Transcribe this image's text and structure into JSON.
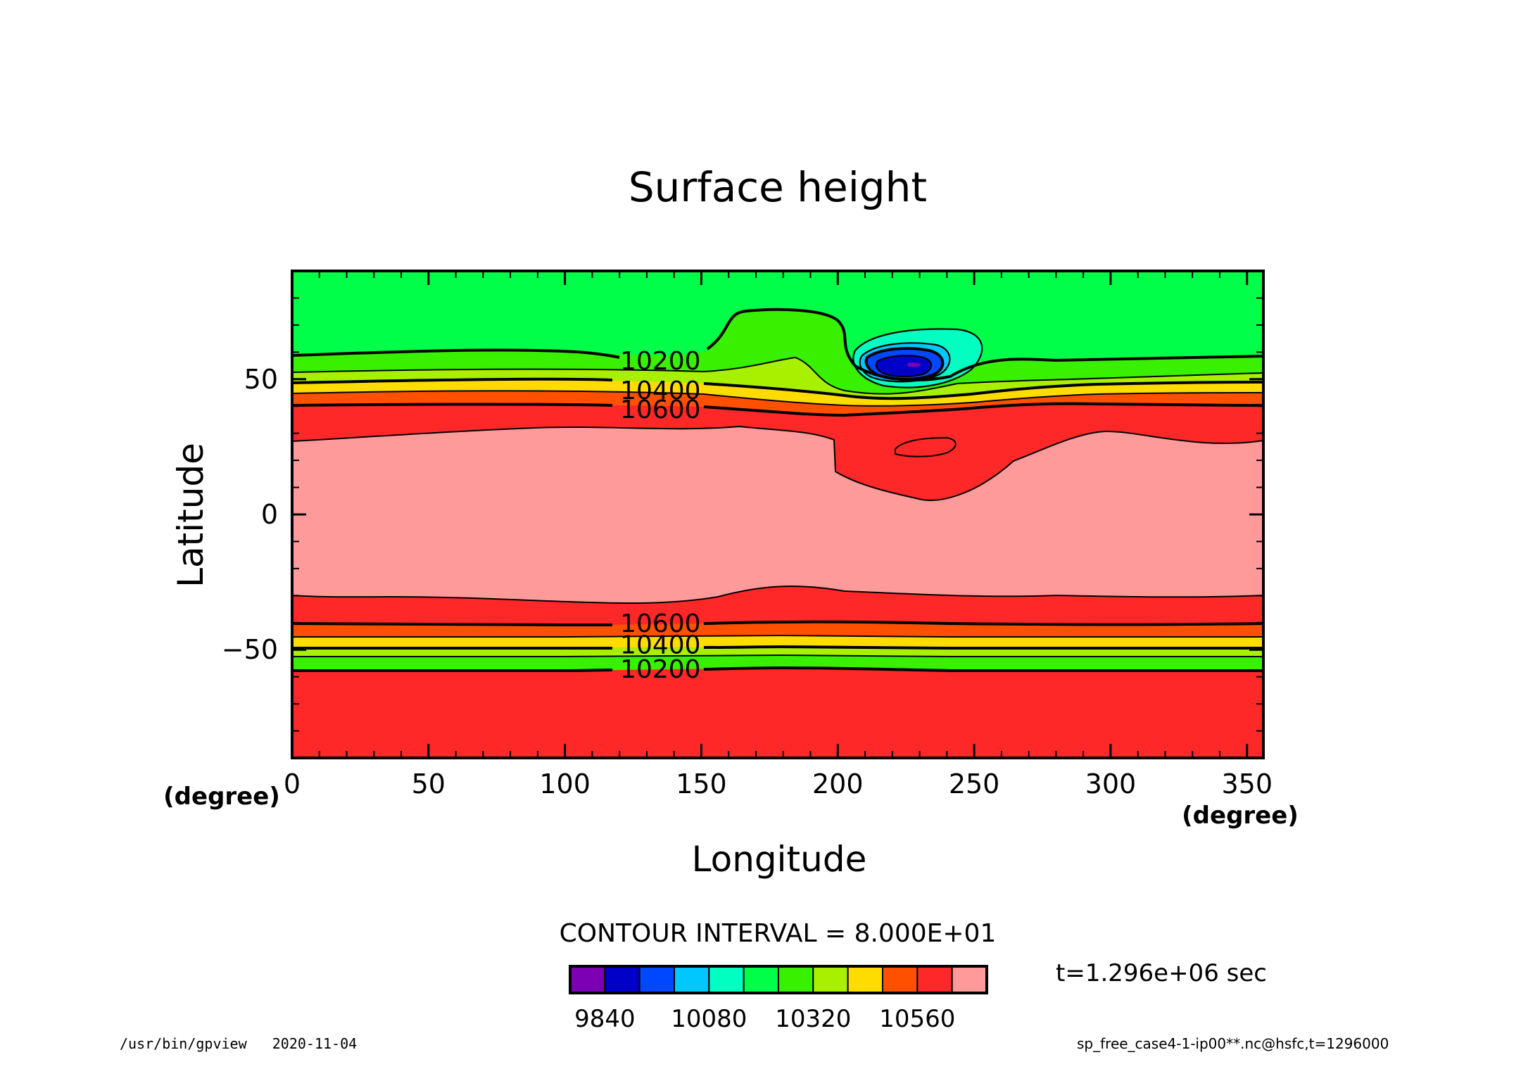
{
  "chart_data": {
    "type": "heatmap",
    "subtype": "filled-contour",
    "title": "Surface height",
    "xlabel": "Longitude",
    "ylabel": "Latitude",
    "x_unit": "(degree)",
    "y_unit": "(degree)",
    "xlim": [
      0,
      356
    ],
    "ylim": [
      -90,
      90
    ],
    "x_ticks": [
      "0",
      "50",
      "100",
      "150",
      "200",
      "250",
      "300",
      "350"
    ],
    "y_ticks": [
      "50",
      "0",
      "−50"
    ],
    "grid": false,
    "contour_interval_text": "CONTOUR INTERVAL = 8.000E+01",
    "contour_labels": [
      {
        "text": "10200",
        "lon": 135,
        "lat": 57
      },
      {
        "text": "10400",
        "lon": 135,
        "lat": 46
      },
      {
        "text": "10600",
        "lon": 135,
        "lat": 39
      },
      {
        "text": "10600",
        "lon": 135,
        "lat": -40
      },
      {
        "text": "10400",
        "lon": 135,
        "lat": -48
      },
      {
        "text": "10200",
        "lon": 135,
        "lat": -57
      }
    ],
    "colorbar": {
      "levels": [
        9840,
        9920,
        10000,
        10080,
        10160,
        10240,
        10320,
        10400,
        10480,
        10560,
        10640
      ],
      "colors": [
        "#7d00b4",
        "#0000c8",
        "#0048ff",
        "#00c8ff",
        "#00ffc0",
        "#00ff48",
        "#38f000",
        "#a8f000",
        "#ffdc00",
        "#ff5000",
        "#ff2828",
        "#ff9a9a"
      ],
      "tick_labels": [
        "9840",
        "10080",
        "10320",
        "10560"
      ]
    },
    "time_label": "t=1.296e+06 sec"
  },
  "footer": {
    "left": "/usr/bin/gpview   2020-11-04",
    "right": "sp_free_case4-1-ip00**.nc@hsfc,t=1296000"
  }
}
